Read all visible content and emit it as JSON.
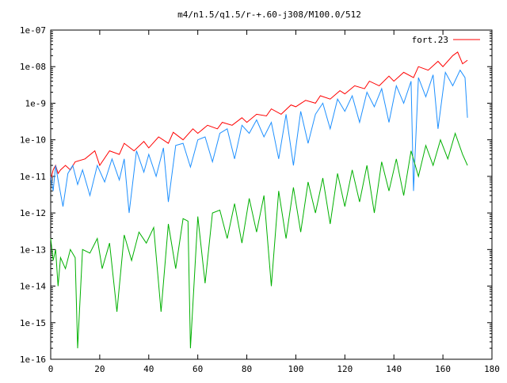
{
  "chart_data": {
    "type": "line",
    "title": "m4/n1.5/q1.5/r-+.60-j308/M100.0/512",
    "xlabel": "",
    "ylabel": "",
    "xlim": [
      0,
      180
    ],
    "ylim": [
      1e-16,
      1e-07
    ],
    "yscale": "log",
    "grid": false,
    "legend_position": "top-right",
    "x_ticks": [
      0,
      20,
      40,
      60,
      80,
      100,
      120,
      140,
      160,
      180
    ],
    "x_tick_labels": [
      "0",
      "20",
      "40",
      "60",
      "80",
      "100",
      "120",
      "140",
      "160",
      "180"
    ],
    "y_ticks": [
      1e-16,
      1e-15,
      1e-14,
      1e-13,
      1e-12,
      1e-11,
      1e-10,
      1e-09,
      1e-08,
      1e-07
    ],
    "y_tick_labels": [
      "1e-16",
      "1e-15",
      "1e-14",
      "1e-13",
      "1e-12",
      "1e-11",
      "1e-10",
      "1e-9",
      "1e-08",
      "1e-07"
    ],
    "series": [
      {
        "name": "fort.23",
        "color": "#ff0000",
        "x": [
          0,
          1,
          2,
          3,
          4,
          6,
          8,
          10,
          14,
          18,
          20,
          24,
          28,
          30,
          34,
          38,
          40,
          44,
          48,
          50,
          54,
          58,
          60,
          64,
          68,
          70,
          74,
          78,
          80,
          84,
          88,
          90,
          94,
          98,
          100,
          104,
          108,
          110,
          114,
          118,
          120,
          124,
          128,
          130,
          134,
          138,
          140,
          144,
          148,
          150,
          154,
          158,
          160,
          164,
          166,
          168,
          170
        ],
        "y": [
          8e-12,
          1.5e-11,
          2e-11,
          1.2e-11,
          1.5e-11,
          2e-11,
          1.5e-11,
          2.5e-11,
          3e-11,
          5e-11,
          2e-11,
          5e-11,
          4e-11,
          8e-11,
          5e-11,
          9e-11,
          6e-11,
          1.2e-10,
          8e-11,
          1.6e-10,
          1e-10,
          2e-10,
          1.5e-10,
          2.5e-10,
          2e-10,
          3e-10,
          2.5e-10,
          4e-10,
          3e-10,
          5e-10,
          4.5e-10,
          7e-10,
          5e-10,
          9e-10,
          8e-10,
          1.2e-09,
          1e-09,
          1.6e-09,
          1.3e-09,
          2.2e-09,
          1.8e-09,
          3e-09,
          2.5e-09,
          4e-09,
          3e-09,
          5.5e-09,
          4e-09,
          7e-09,
          5e-09,
          1e-08,
          8e-09,
          1.4e-08,
          1e-08,
          2e-08,
          2.5e-08,
          1.2e-08,
          1.5e-08
        ]
      },
      {
        "name": "",
        "color": "#1e90ff",
        "x": [
          0,
          1,
          2,
          3,
          5,
          7,
          9,
          11,
          13,
          16,
          19,
          22,
          25,
          28,
          30,
          32,
          35,
          38,
          40,
          43,
          46,
          48,
          51,
          54,
          57,
          60,
          63,
          66,
          69,
          72,
          75,
          78,
          81,
          84,
          87,
          90,
          93,
          96,
          99,
          102,
          105,
          108,
          111,
          114,
          117,
          120,
          123,
          126,
          129,
          132,
          135,
          138,
          141,
          144,
          147,
          148,
          150,
          153,
          156,
          158,
          161,
          164,
          167,
          169,
          170
        ],
        "y": [
          1e-11,
          4e-12,
          2e-11,
          8e-12,
          1.5e-12,
          1.2e-11,
          2e-11,
          6e-12,
          1.5e-11,
          3e-12,
          2e-11,
          7e-12,
          3e-11,
          8e-12,
          3e-11,
          1e-12,
          5e-11,
          1.3e-11,
          4e-11,
          1e-11,
          6e-11,
          2e-12,
          7e-11,
          8e-11,
          1.8e-11,
          1e-10,
          1.2e-10,
          2.5e-11,
          1.5e-10,
          2e-10,
          3e-11,
          2.5e-10,
          1.5e-10,
          3.5e-10,
          1.2e-10,
          3e-10,
          3e-11,
          5e-10,
          2e-11,
          6e-10,
          8e-11,
          5e-10,
          1e-09,
          2e-10,
          1.3e-09,
          6e-10,
          1.6e-09,
          3e-10,
          2e-09,
          8e-10,
          2.5e-09,
          3e-10,
          3e-09,
          1e-09,
          4e-09,
          4e-12,
          5e-09,
          1.5e-09,
          6e-09,
          2e-10,
          7e-09,
          3e-09,
          8e-09,
          5e-09,
          4e-10
        ]
      },
      {
        "name": "",
        "color": "#00b000",
        "x": [
          0,
          1,
          2,
          3,
          4,
          6,
          8,
          10,
          11,
          13,
          16,
          19,
          21,
          24,
          27,
          30,
          33,
          36,
          39,
          42,
          45,
          48,
          51,
          54,
          56,
          57,
          60,
          63,
          66,
          69,
          72,
          75,
          78,
          81,
          84,
          87,
          90,
          93,
          96,
          99,
          102,
          105,
          108,
          111,
          114,
          117,
          120,
          123,
          126,
          129,
          132,
          135,
          138,
          141,
          144,
          147,
          150,
          153,
          156,
          159,
          162,
          165,
          168,
          170
        ],
        "y": [
          2e-13,
          5e-14,
          1e-13,
          1e-14,
          6e-14,
          3e-14,
          1e-13,
          6e-14,
          2e-16,
          1e-13,
          8e-14,
          2e-13,
          3e-14,
          1.5e-13,
          2e-15,
          2.5e-13,
          5e-14,
          3e-13,
          1.5e-13,
          4e-13,
          2e-15,
          5e-13,
          3e-14,
          7e-13,
          6e-13,
          2e-16,
          8e-13,
          1.2e-14,
          1e-12,
          1.2e-12,
          2e-13,
          1.8e-12,
          1.5e-13,
          2.5e-12,
          3e-13,
          3e-12,
          1e-14,
          4e-12,
          2e-13,
          5e-12,
          3e-13,
          7e-12,
          1e-12,
          9e-12,
          5e-13,
          1.2e-11,
          1.5e-12,
          1.5e-11,
          2e-12,
          2e-11,
          1e-12,
          2.5e-11,
          4e-12,
          3e-11,
          3e-12,
          5e-11,
          1e-11,
          7e-11,
          2e-11,
          1e-10,
          3e-11,
          1.5e-10,
          4e-11,
          2e-11
        ]
      }
    ]
  }
}
